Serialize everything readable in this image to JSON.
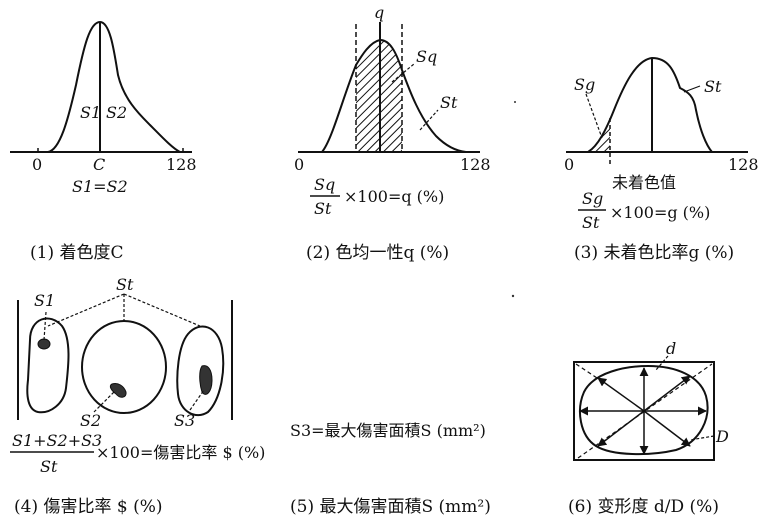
{
  "panel1": {
    "caption": "(1) 着色度C",
    "axis_min": "0",
    "axis_mid": "C",
    "axis_max": "128",
    "label_s1": "S1",
    "label_s2": "S2",
    "equation": "S1=S2"
  },
  "panel2": {
    "caption": "(2) 色均一性q (%)",
    "peak_label": "q",
    "label_sq": "Sq",
    "label_st": "St",
    "axis_min": "0",
    "axis_max": "128",
    "formula_num": "Sq",
    "formula_den": "St",
    "formula_tail": "×100=q (%)"
  },
  "panel3": {
    "caption": "(3) 未着色比率g (%)",
    "label_sg": "Sg",
    "label_st": "St",
    "axis_min": "0",
    "axis_max": "128",
    "threshold_label": "未着色值",
    "formula_num": "Sg",
    "formula_den": "St",
    "formula_tail": "×100=g (%)"
  },
  "panel4": {
    "caption": "(4) 傷害比率 $ (%)",
    "label_s1": "S1",
    "label_s2": "S2",
    "label_s3": "S3",
    "label_st": "St",
    "formula_num": "S1+S2+S3",
    "formula_den": "St",
    "formula_tail": "×100=傷害比率 $ (%)"
  },
  "panel5": {
    "caption": "(5) 最大傷害面積S (mm²)",
    "text": "S3=最大傷害面積S (mm²)"
  },
  "panel6": {
    "caption": "(6) 变形度 d/D (%)",
    "label_d": "d",
    "label_D": "D"
  }
}
